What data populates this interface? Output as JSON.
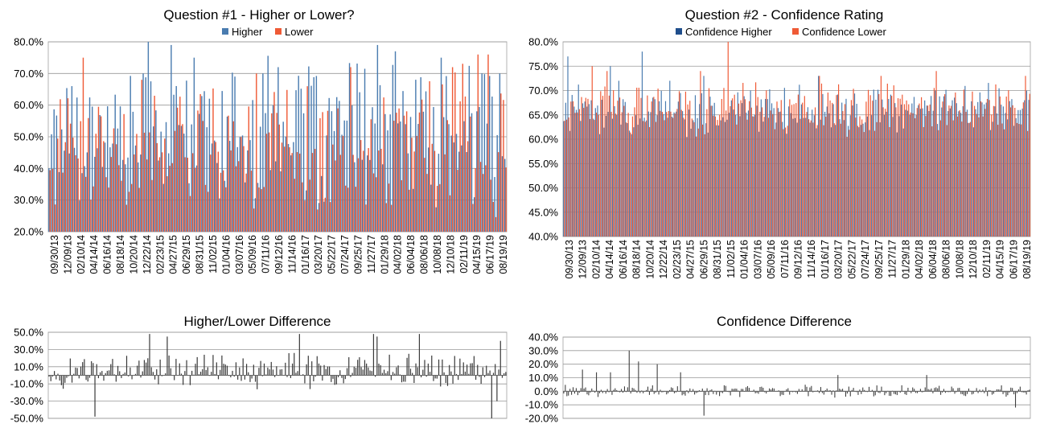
{
  "colors": {
    "series_a": "#4a7cb0",
    "series_b": "#ef5a36",
    "diff": "#3a3a3a",
    "grid": "#999999",
    "axis": "#b3b3b3"
  },
  "chart_data": [
    {
      "id": "q1",
      "type": "bar",
      "title": "Question #1 - Higher or Lower?",
      "legend": {
        "placement": "top",
        "entries": [
          "Higher",
          "Lower"
        ]
      },
      "ylim": [
        20,
        80
      ],
      "y_ticks": [
        "80.0%",
        "70.0%",
        "60.0%",
        "50.0%",
        "40.0%",
        "30.0%",
        "20.0%"
      ],
      "x_tick_labels": [
        "09/30/13",
        "12/09/13",
        "02/10/14",
        "04/14/14",
        "06/16/14",
        "08/18/14",
        "10/20/14",
        "12/22/14",
        "02/23/15",
        "04/27/15",
        "06/29/15",
        "08/31/15",
        "11/02/15",
        "01/04/16",
        "03/07/16",
        "05/09/16",
        "07/11/16",
        "09/12/16",
        "11/14/16",
        "01/16/17",
        "03/20/17",
        "05/22/17",
        "07/24/17",
        "09/25/17",
        "11/27/17",
        "01/29/18",
        "04/02/18",
        "06/04/18",
        "08/06/18",
        "10/08/18",
        "12/10/18",
        "02/11/19",
        "04/15/19",
        "06/17/19",
        "08/19/19"
      ],
      "series": [
        {
          "name": "Higher",
          "base": 52,
          "spread": 26,
          "spikes": [
            [
              0.05,
              66
            ],
            [
              0.22,
              80
            ],
            [
              0.27,
              79
            ],
            [
              0.32,
              75
            ],
            [
              0.47,
              70
            ],
            [
              0.5,
              72
            ],
            [
              0.72,
              79
            ],
            [
              0.76,
              77
            ],
            [
              0.86,
              75
            ],
            [
              0.95,
              70
            ],
            [
              0.99,
              70
            ]
          ]
        },
        {
          "name": "Lower",
          "base": 48,
          "spread": 26,
          "spikes": [
            [
              0.07,
              75
            ],
            [
              0.2,
              68
            ],
            [
              0.45,
              70
            ],
            [
              0.66,
              72
            ],
            [
              0.88,
              72
            ],
            [
              0.94,
              76
            ],
            [
              0.96,
              76
            ]
          ]
        }
      ]
    },
    {
      "id": "q2",
      "type": "bar",
      "title": "Question #2 - Confidence Rating",
      "legend": {
        "placement": "top",
        "entries": [
          "Confidence Higher",
          "Confidence Lower"
        ]
      },
      "ylim": [
        40,
        80
      ],
      "y_ticks": [
        "80.0%",
        "75.0%",
        "70.0%",
        "65.0%",
        "60.0%",
        "55.0%",
        "50.0%",
        "45.0%",
        "40.0%"
      ],
      "x_tick_labels": [
        "09/30/13",
        "12/09/13",
        "02/10/14",
        "04/14/14",
        "06/16/14",
        "08/18/14",
        "10/20/14",
        "12/22/14",
        "02/23/15",
        "04/27/15",
        "06/29/15",
        "08/31/15",
        "11/02/15",
        "01/04/16",
        "03/07/16",
        "05/09/16",
        "07/11/16",
        "09/12/16",
        "11/14/16",
        "01/16/17",
        "03/20/17",
        "05/22/17",
        "07/24/17",
        "09/25/17",
        "11/27/17",
        "01/29/18",
        "04/02/18",
        "06/04/18",
        "08/06/18",
        "10/08/18",
        "12/10/18",
        "02/11/19",
        "04/15/19",
        "06/17/19",
        "08/19/19"
      ],
      "series": [
        {
          "name": "Confidence Higher",
          "base": 66,
          "spread": 6,
          "spikes": [
            [
              0.01,
              77
            ],
            [
              0.1,
              75
            ],
            [
              0.12,
              72
            ],
            [
              0.17,
              78
            ],
            [
              0.23,
              72
            ],
            [
              0.3,
              73
            ],
            [
              0.4,
              70
            ],
            [
              0.55,
              73
            ],
            [
              0.8,
              70
            ],
            [
              0.99,
              68
            ]
          ]
        },
        {
          "name": "Confidence Lower",
          "base": 66,
          "spread": 6,
          "spikes": [
            [
              0.06,
              75
            ],
            [
              0.09,
              74
            ],
            [
              0.35,
              80
            ],
            [
              0.29,
              74
            ],
            [
              0.55,
              73
            ],
            [
              0.68,
              73
            ],
            [
              0.8,
              74
            ],
            [
              0.99,
              73
            ]
          ]
        }
      ]
    },
    {
      "id": "hl-diff",
      "type": "bar",
      "title": "Higher/Lower Difference",
      "ylim": [
        -50,
        50
      ],
      "y_ticks": [
        "50.0%",
        "30.0%",
        "10.0%",
        "-10.0%",
        "-30.0%",
        "-50.0%"
      ],
      "series": [
        {
          "name": "",
          "base": 5,
          "spread": 22,
          "spikes": [
            [
              0.1,
              -48
            ],
            [
              0.22,
              48
            ],
            [
              0.26,
              45
            ],
            [
              0.55,
              48
            ],
            [
              0.71,
              48
            ],
            [
              0.72,
              45
            ],
            [
              0.81,
              48
            ],
            [
              0.97,
              -50
            ],
            [
              0.99,
              40
            ],
            [
              0.98,
              -30
            ]
          ]
        }
      ]
    },
    {
      "id": "conf-diff",
      "type": "bar",
      "title": "Confidence Difference",
      "ylim": [
        -20,
        40
      ],
      "y_ticks": [
        "40.0%",
        "30.0%",
        "20.0%",
        "10.0%",
        "0.0%",
        "-10.0%",
        "-20.0%"
      ],
      "series": [
        {
          "name": "",
          "base": 0,
          "spread": 5,
          "spikes": [
            [
              0.04,
              16
            ],
            [
              0.07,
              14
            ],
            [
              0.1,
              14
            ],
            [
              0.14,
              30
            ],
            [
              0.16,
              22
            ],
            [
              0.2,
              20
            ],
            [
              0.25,
              14
            ],
            [
              0.3,
              -18
            ],
            [
              0.59,
              12
            ],
            [
              0.78,
              12
            ],
            [
              0.97,
              -12
            ]
          ]
        }
      ]
    }
  ]
}
